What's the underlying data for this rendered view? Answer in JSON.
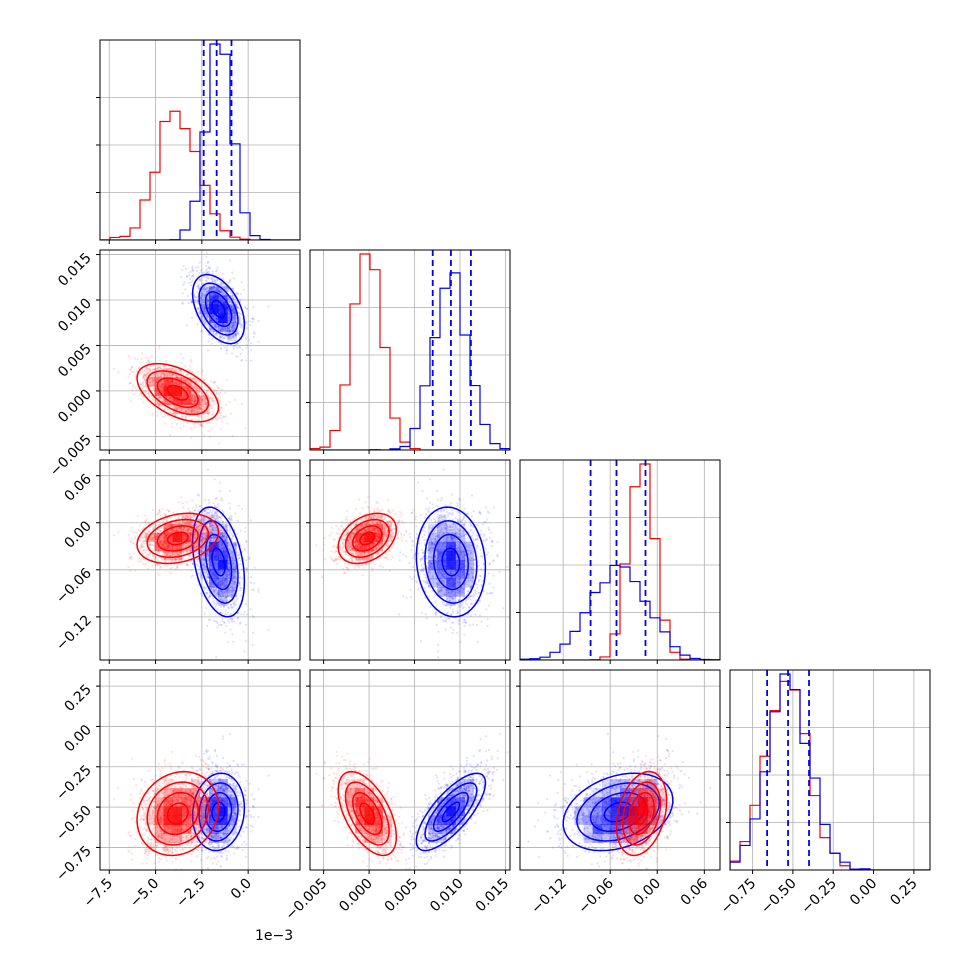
{
  "chart_data": {
    "type": "corner",
    "colors": {
      "red": "#ff0000",
      "blue": "#0000ff"
    },
    "grid": true,
    "x_offset_label": "1e−3",
    "params": [
      {
        "range": [
          -8.0,
          2.8
        ],
        "ticks": [
          -7.5,
          -5.0,
          -2.5,
          0.0
        ],
        "tick_labels": [
          "−7.5",
          "−5.0",
          "−2.5",
          "0.0"
        ]
      },
      {
        "range": [
          -0.0065,
          0.0155
        ],
        "ticks": [
          -0.005,
          0.0,
          0.005,
          0.01,
          0.015
        ],
        "tick_labels": [
          "−0.005",
          "0.000",
          "0.005",
          "0.010",
          "0.015"
        ]
      },
      {
        "range": [
          -0.175,
          0.08
        ],
        "ticks": [
          -0.12,
          -0.06,
          0.0,
          0.06
        ],
        "tick_labels": [
          "−0.12",
          "−0.06",
          "0.00",
          "0.06"
        ]
      },
      {
        "range": [
          -0.89,
          0.35
        ],
        "ticks": [
          -0.75,
          -0.5,
          -0.25,
          0.0,
          0.25
        ],
        "tick_labels": [
          "−0.75",
          "−0.50",
          "−0.25",
          "0.00",
          "0.25"
        ]
      }
    ],
    "series": [
      {
        "color": "red",
        "mean": [
          -3.8,
          -0.0002,
          -0.02,
          -0.54
        ],
        "std": [
          1.1,
          0.0016,
          0.016,
          0.13
        ],
        "corr": {
          "0-1": -0.5,
          "0-2": 0.25,
          "0-3": 0.15,
          "1-2": 0.35,
          "1-3": -0.55,
          "2-3": 0.3
        }
      },
      {
        "color": "blue",
        "mean": [
          -1.6,
          0.009,
          -0.05,
          -0.53
        ],
        "std": [
          0.7,
          0.0019,
          0.035,
          0.12
        ],
        "corr": {
          "0-1": -0.45,
          "0-2": -0.35,
          "0-3": 0.1,
          "1-2": -0.1,
          "1-3": 0.75,
          "2-3": 0.3
        }
      }
    ],
    "quantile_lines": [
      [
        -2.4,
        -1.7,
        -0.9
      ],
      [
        0.007,
        0.009,
        0.0112
      ],
      [
        -0.085,
        -0.052,
        -0.015
      ],
      [
        -0.66,
        -0.53,
        -0.4
      ]
    ],
    "quantile_line_color": "blue"
  }
}
